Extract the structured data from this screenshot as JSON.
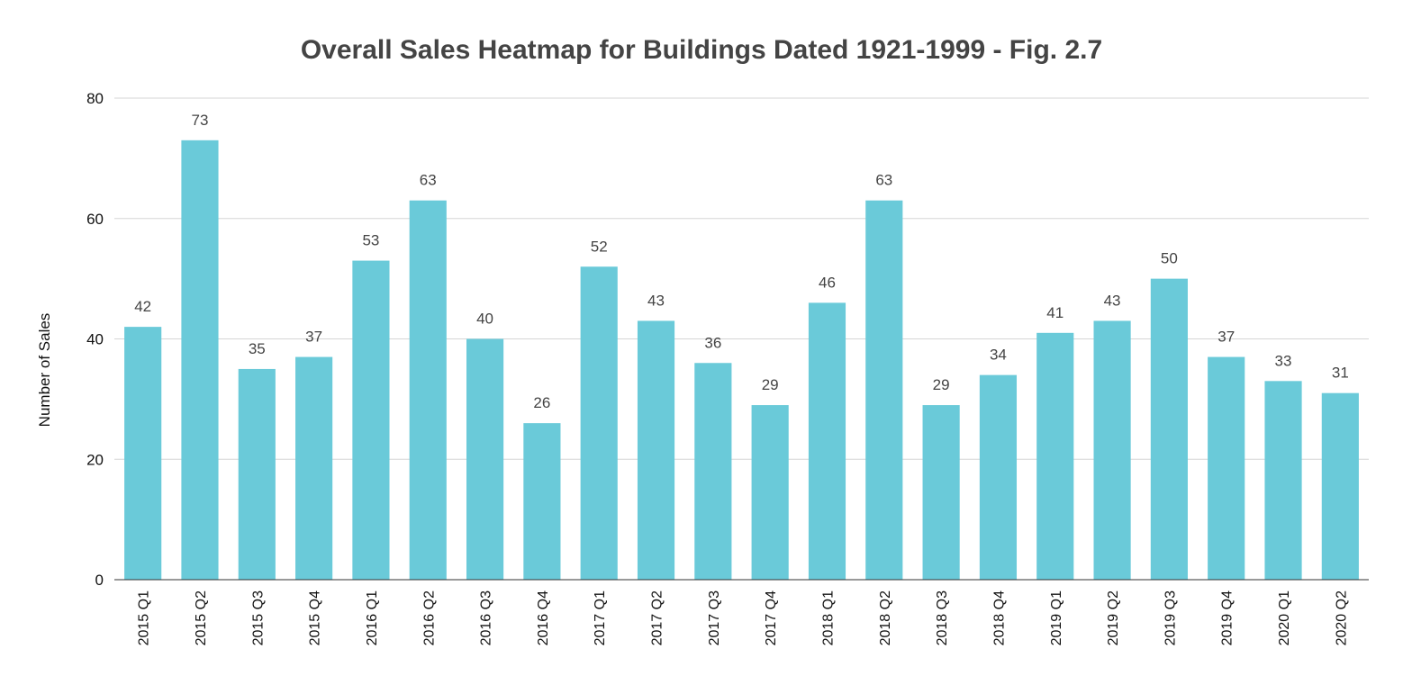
{
  "chart_data": {
    "type": "bar",
    "title": "Overall Sales Heatmap for Buildings Dated 1921-1999 - Fig. 2.7",
    "xlabel": "",
    "ylabel": "Number of Sales",
    "ylim": [
      0,
      80
    ],
    "yticks": [
      0,
      20,
      40,
      60,
      80
    ],
    "grid": true,
    "legend": "none",
    "bar_color": "#6acad9",
    "categories": [
      "2015 Q1",
      "2015 Q2",
      "2015 Q3",
      "2015 Q4",
      "2016 Q1",
      "2016 Q2",
      "2016 Q3",
      "2016 Q4",
      "2017 Q1",
      "2017 Q2",
      "2017 Q3",
      "2017 Q4",
      "2018 Q1",
      "2018 Q2",
      "2018 Q3",
      "2018 Q4",
      "2019 Q1",
      "2019 Q2",
      "2019 Q3",
      "2019 Q4",
      "2020 Q1",
      "2020 Q2"
    ],
    "values": [
      42,
      73,
      35,
      37,
      53,
      63,
      40,
      26,
      52,
      43,
      36,
      29,
      46,
      63,
      29,
      34,
      41,
      43,
      50,
      37,
      33,
      31
    ]
  }
}
